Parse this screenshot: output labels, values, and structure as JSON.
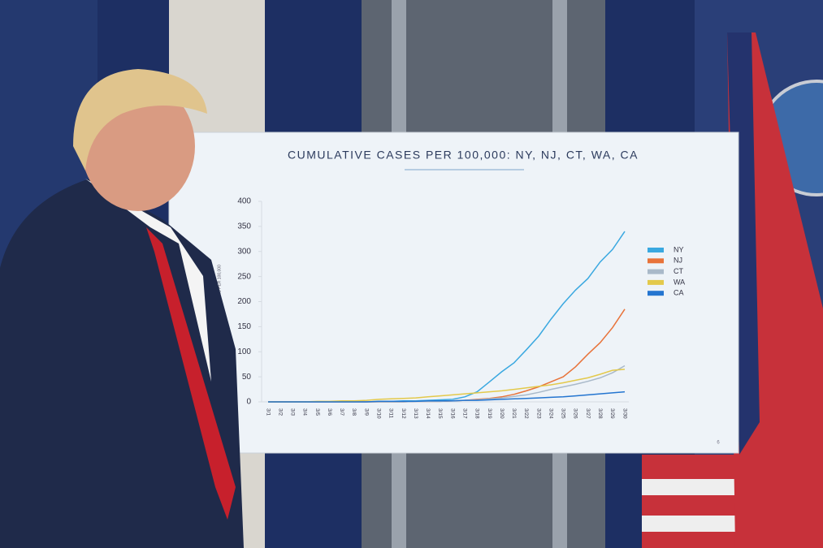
{
  "chart_data": {
    "type": "line",
    "title": "CUMULATIVE CASES PER 100,000: NY, NJ, CT, WA, CA",
    "y_label": "CONFIRMED CASES PER 100,000",
    "categories": [
      "3/1",
      "3/2",
      "3/3",
      "3/4",
      "3/5",
      "3/6",
      "3/7",
      "3/8",
      "3/9",
      "3/10",
      "3/11",
      "3/12",
      "3/13",
      "3/14",
      "3/15",
      "3/16",
      "3/17",
      "3/18",
      "3/19",
      "3/20",
      "3/21",
      "3/22",
      "3/23",
      "3/24",
      "3/25",
      "3/26",
      "3/27",
      "3/28",
      "3/29",
      "3/30"
    ],
    "series": [
      {
        "name": "NY",
        "color": "#3aa8e0",
        "values": [
          0,
          0,
          0,
          0,
          0,
          0,
          0,
          0,
          0,
          1,
          1,
          2,
          2,
          3,
          4,
          5,
          10,
          20,
          40,
          60,
          78,
          104,
          131,
          165,
          196,
          223,
          246,
          279,
          304,
          340
        ]
      },
      {
        "name": "NJ",
        "color": "#e8733a",
        "values": [
          0,
          0,
          0,
          0,
          0,
          0,
          0,
          0,
          0,
          0,
          0,
          0,
          1,
          1,
          1,
          2,
          3,
          5,
          7,
          10,
          15,
          22,
          30,
          40,
          50,
          70,
          95,
          118,
          148,
          185
        ]
      },
      {
        "name": "CT",
        "color": "#a9b9c9",
        "values": [
          0,
          0,
          0,
          0,
          0,
          0,
          0,
          0,
          0,
          0,
          0,
          0,
          1,
          1,
          1,
          2,
          3,
          4,
          6,
          8,
          11,
          14,
          19,
          25,
          30,
          35,
          41,
          48,
          58,
          72
        ]
      },
      {
        "name": "WA",
        "color": "#e3c94b",
        "values": [
          0,
          0,
          0,
          0,
          1,
          1,
          2,
          2,
          3,
          5,
          6,
          7,
          8,
          10,
          12,
          14,
          16,
          18,
          20,
          22,
          25,
          28,
          31,
          34,
          38,
          43,
          48,
          55,
          63,
          65
        ]
      },
      {
        "name": "CA",
        "color": "#2475d0",
        "values": [
          0,
          0,
          0,
          0,
          0,
          0,
          0,
          0,
          0,
          1,
          1,
          1,
          1,
          2,
          2,
          2,
          3,
          3,
          4,
          5,
          6,
          7,
          8,
          9,
          10,
          12,
          14,
          16,
          18,
          20
        ]
      }
    ],
    "ylim": [
      0,
      400
    ],
    "yticks": [
      0,
      50,
      100,
      150,
      200,
      250,
      300,
      350,
      400
    ],
    "legend": "right"
  },
  "slide_number": "6"
}
